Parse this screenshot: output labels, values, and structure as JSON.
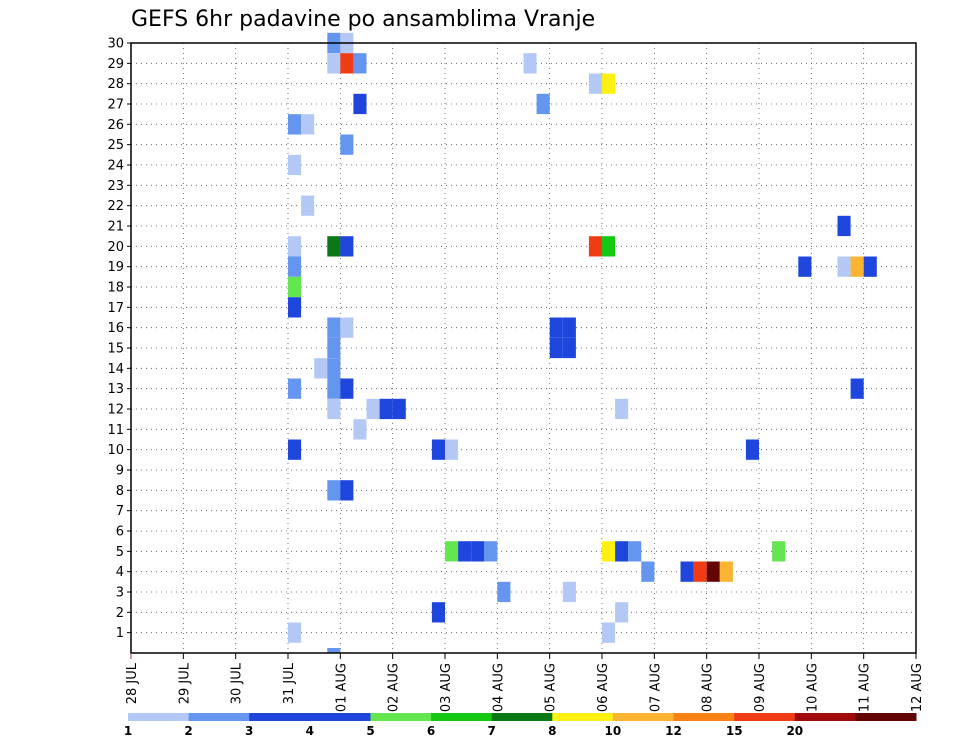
{
  "chart_data": {
    "type": "heatmap",
    "title": "GEFS 6hr padavine po ansamblima Vranje",
    "x_tick_labels": [
      "28 JUL",
      "29 JUL",
      "30 JUL",
      "31 JUL",
      "01 AUG",
      "02 AUG",
      "03 AUG",
      "04 AUG",
      "05 AUG",
      "06 AUG",
      "07 AUG",
      "08 AUG",
      "09 AUG",
      "10 AUG",
      "11 AUG",
      "12 AUG"
    ],
    "y_tick_labels": [
      "1",
      "2",
      "3",
      "4",
      "5",
      "6",
      "7",
      "8",
      "9",
      "10",
      "11",
      "12",
      "13",
      "14",
      "15",
      "16",
      "17",
      "18",
      "19",
      "20",
      "21",
      "22",
      "23",
      "24",
      "25",
      "26",
      "27",
      "28",
      "29",
      "30"
    ],
    "x_range": [
      "28 JUL 00Z",
      "12 AUG 00Z"
    ],
    "y_range": [
      0,
      30
    ],
    "x_step": "6hr",
    "grid": true,
    "colorbar": {
      "ticks": [
        "1",
        "2",
        "3",
        "4",
        "5",
        "6",
        "7",
        "8",
        "10",
        "12",
        "15",
        "20"
      ],
      "colors": [
        "#b4c8f5",
        "#6496f0",
        "#1e46dc",
        "#1e46dc",
        "#64e650",
        "#14c814",
        "#0a7814",
        "#fff014",
        "#fab432",
        "#fa8214",
        "#f03c14",
        "#a00a0a",
        "#640505"
      ]
    },
    "cells": [
      {
        "x": "31 JUL 18Z",
        "member": 30,
        "value": 2.5
      },
      {
        "x": "01 AUG 00Z",
        "member": 30,
        "value": 1.5
      },
      {
        "x": "31 JUL 18Z",
        "member": 29,
        "value": 1.5
      },
      {
        "x": "01 AUG 00Z",
        "member": 29,
        "value": 16
      },
      {
        "x": "01 AUG 06Z",
        "member": 29,
        "value": 2.5
      },
      {
        "x": "04 AUG 12Z",
        "member": 29,
        "value": 1.5
      },
      {
        "x": "05 AUG 18Z",
        "member": 28,
        "value": 1.5
      },
      {
        "x": "06 AUG 00Z",
        "member": 28,
        "value": 9
      },
      {
        "x": "01 AUG 06Z",
        "member": 27,
        "value": 4.5
      },
      {
        "x": "04 AUG 18Z",
        "member": 27,
        "value": 2.5
      },
      {
        "x": "31 JUL 00Z",
        "member": 26,
        "value": 2.5
      },
      {
        "x": "31 JUL 06Z",
        "member": 26,
        "value": 1.5
      },
      {
        "x": "01 AUG 00Z",
        "member": 25,
        "value": 2.5
      },
      {
        "x": "31 JUL 00Z",
        "member": 24,
        "value": 1.5
      },
      {
        "x": "31 JUL 06Z",
        "member": 22,
        "value": 1.5
      },
      {
        "x": "10 AUG 12Z",
        "member": 21,
        "value": 4.5
      },
      {
        "x": "31 JUL 00Z",
        "member": 20,
        "value": 1.5
      },
      {
        "x": "31 JUL 18Z",
        "member": 20,
        "value": 7.5
      },
      {
        "x": "01 AUG 00Z",
        "member": 20,
        "value": 4.5
      },
      {
        "x": "05 AUG 18Z",
        "member": 20,
        "value": 16
      },
      {
        "x": "06 AUG 00Z",
        "member": 20,
        "value": 6.5
      },
      {
        "x": "31 JUL 00Z",
        "member": 19,
        "value": 2.5
      },
      {
        "x": "09 AUG 18Z",
        "member": 19,
        "value": 4.5
      },
      {
        "x": "10 AUG 12Z",
        "member": 19,
        "value": 1.5
      },
      {
        "x": "10 AUG 18Z",
        "member": 19,
        "value": 11
      },
      {
        "x": "11 AUG 00Z",
        "member": 19,
        "value": 3.5
      },
      {
        "x": "31 JUL 00Z",
        "member": 18,
        "value": 5.5
      },
      {
        "x": "31 JUL 00Z",
        "member": 17,
        "value": 3.5
      },
      {
        "x": "31 JUL 18Z",
        "member": 16,
        "value": 2.5
      },
      {
        "x": "01 AUG 00Z",
        "member": 16,
        "value": 1.5
      },
      {
        "x": "05 AUG 00Z",
        "member": 16,
        "value": 4.5
      },
      {
        "x": "05 AUG 06Z",
        "member": 16,
        "value": 4.5
      },
      {
        "x": "31 JUL 18Z",
        "member": 15,
        "value": 2.5
      },
      {
        "x": "05 AUG 00Z",
        "member": 15,
        "value": 4.5
      },
      {
        "x": "05 AUG 06Z",
        "member": 15,
        "value": 4.5
      },
      {
        "x": "31 JUL 12Z",
        "member": 14,
        "value": 1.5
      },
      {
        "x": "31 JUL 18Z",
        "member": 14,
        "value": 2.5
      },
      {
        "x": "31 JUL 00Z",
        "member": 13,
        "value": 2.5
      },
      {
        "x": "31 JUL 18Z",
        "member": 13,
        "value": 2.5
      },
      {
        "x": "01 AUG 00Z",
        "member": 13,
        "value": 4.5
      },
      {
        "x": "10 AUG 18Z",
        "member": 13,
        "value": 3.5
      },
      {
        "x": "31 JUL 18Z",
        "member": 12,
        "value": 1.5
      },
      {
        "x": "01 AUG 12Z",
        "member": 12,
        "value": 1.5
      },
      {
        "x": "01 AUG 18Z",
        "member": 12,
        "value": 4.5
      },
      {
        "x": "02 AUG 00Z",
        "member": 12,
        "value": 4.5
      },
      {
        "x": "06 AUG 06Z",
        "member": 12,
        "value": 1.5
      },
      {
        "x": "01 AUG 06Z",
        "member": 11,
        "value": 1.5
      },
      {
        "x": "31 JUL 00Z",
        "member": 10,
        "value": 3.5
      },
      {
        "x": "02 AUG 18Z",
        "member": 10,
        "value": 3.5
      },
      {
        "x": "03 AUG 00Z",
        "member": 10,
        "value": 1.5
      },
      {
        "x": "08 AUG 18Z",
        "member": 10,
        "value": 3.5
      },
      {
        "x": "31 JUL 18Z",
        "member": 8,
        "value": 2.5
      },
      {
        "x": "01 AUG 00Z",
        "member": 8,
        "value": 3.5
      },
      {
        "x": "03 AUG 00Z",
        "member": 5,
        "value": 5.5
      },
      {
        "x": "03 AUG 06Z",
        "member": 5,
        "value": 3.5
      },
      {
        "x": "03 AUG 12Z",
        "member": 5,
        "value": 3.5
      },
      {
        "x": "03 AUG 18Z",
        "member": 5,
        "value": 2.5
      },
      {
        "x": "06 AUG 00Z",
        "member": 5,
        "value": 9
      },
      {
        "x": "06 AUG 06Z",
        "member": 5,
        "value": 3.5
      },
      {
        "x": "06 AUG 12Z",
        "member": 5,
        "value": 2.5
      },
      {
        "x": "09 AUG 06Z",
        "member": 5,
        "value": 5.5
      },
      {
        "x": "06 AUG 18Z",
        "member": 4,
        "value": 2.5
      },
      {
        "x": "07 AUG 12Z",
        "member": 4,
        "value": 4.5
      },
      {
        "x": "07 AUG 18Z",
        "member": 4,
        "value": 16
      },
      {
        "x": "08 AUG 00Z",
        "member": 4,
        "value": 22
      },
      {
        "x": "08 AUG 06Z",
        "member": 4,
        "value": 11
      },
      {
        "x": "04 AUG 00Z",
        "member": 3,
        "value": 2.5
      },
      {
        "x": "05 AUG 06Z",
        "member": 3,
        "value": 1.5
      },
      {
        "x": "02 AUG 18Z",
        "member": 2,
        "value": 4.5
      },
      {
        "x": "06 AUG 06Z",
        "member": 2,
        "value": 1.5
      },
      {
        "x": "31 JUL 00Z",
        "member": 1,
        "value": 1.5
      },
      {
        "x": "06 AUG 00Z",
        "member": 1,
        "value": 1.5
      },
      {
        "x": "31 JUL 18Z",
        "member": 0,
        "value": 2.5
      }
    ]
  }
}
